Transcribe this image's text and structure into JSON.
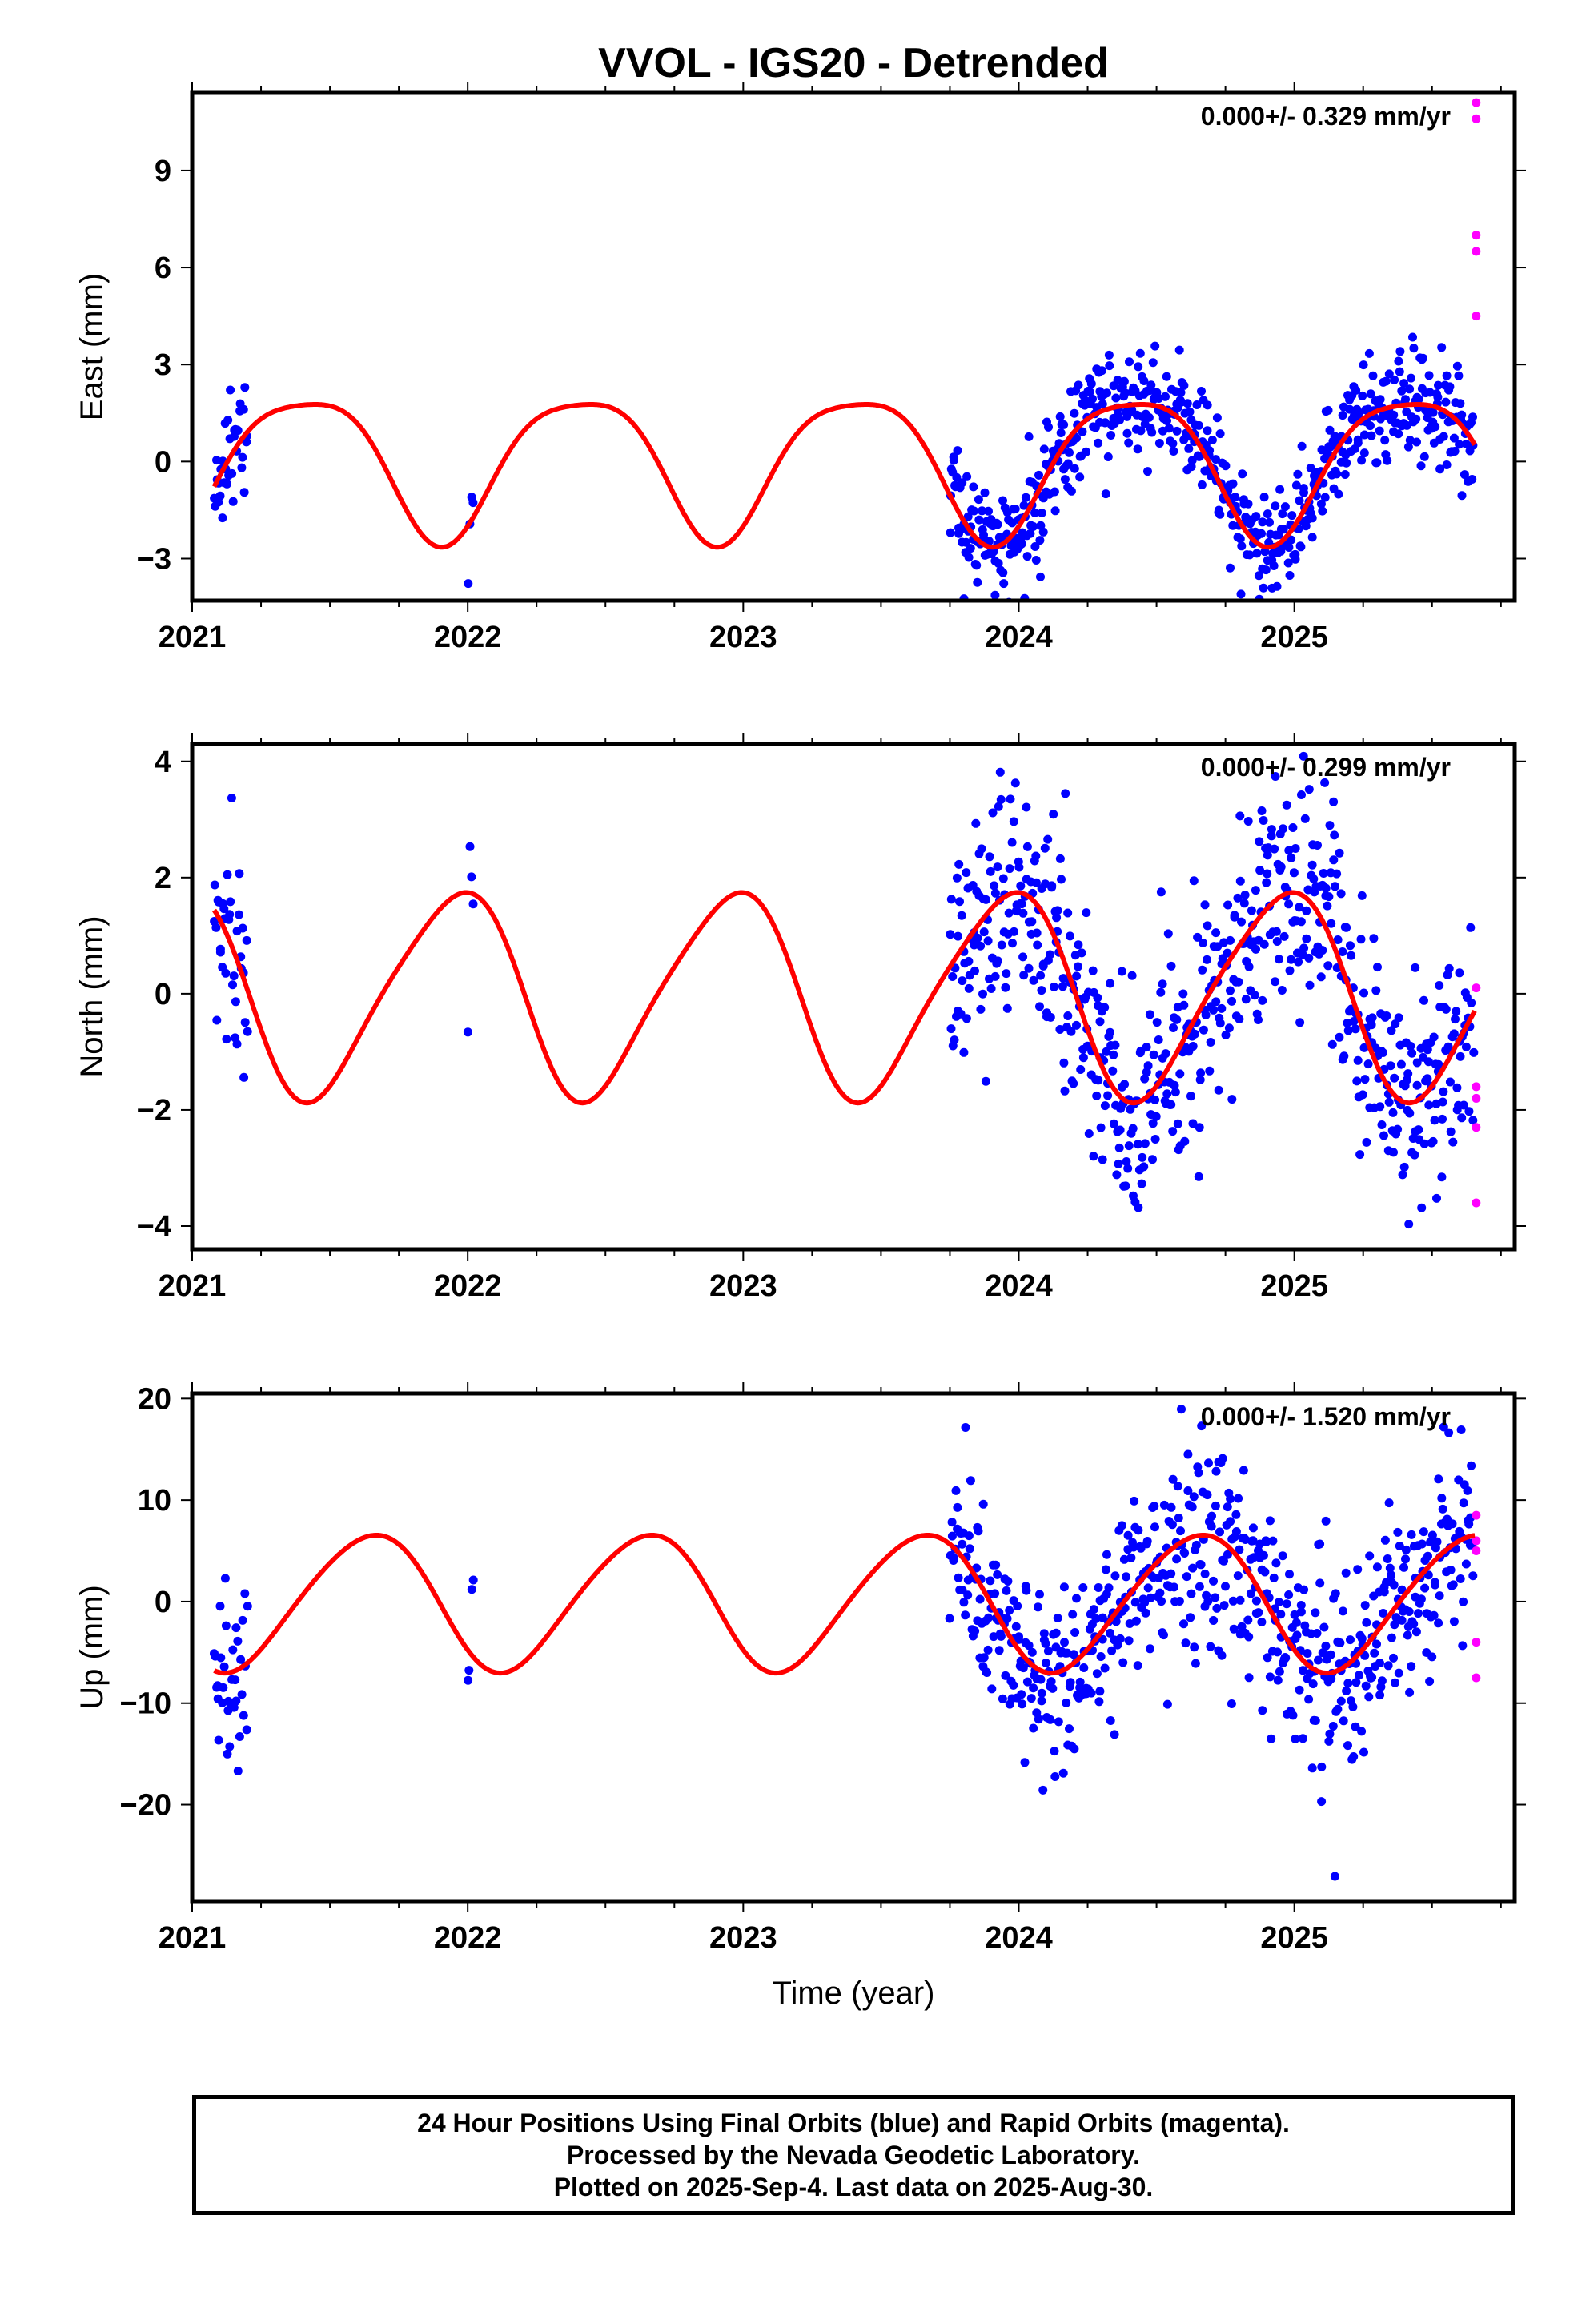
{
  "title": "VVOL - IGS20 - Detrended",
  "colors": {
    "final": "#0000ff",
    "rapid": "#ff00ff",
    "model": "#ff0000",
    "axis": "#000000"
  },
  "footer": {
    "line1": "24 Hour Positions Using Final Orbits (blue) and Rapid Orbits (magenta).",
    "line2": "Processed by the Nevada Geodetic Laboratory.",
    "line3": "Plotted on 2025-Sep-4. Last data on 2025-Aug-30."
  },
  "chart_data": [
    {
      "type": "scatter",
      "name": "east",
      "ylabel": "East (mm)",
      "xlabel": "",
      "xlim": [
        2021.0,
        2025.8
      ],
      "ylim": [
        -4.3,
        11.4
      ],
      "xticks": [
        2021,
        2022,
        2023,
        2024,
        2025
      ],
      "xtick_labels": [
        "2021",
        "2022",
        "2023",
        "2024",
        "2025"
      ],
      "yticks": [
        -3,
        0,
        3,
        6,
        9
      ],
      "ytick_labels": [
        "−3",
        "0",
        "3",
        "6",
        "9"
      ],
      "rate_label": "0.000+/- 0.329 mm/yr",
      "model": {
        "amplitude": 2.2,
        "peak_phase": 0.41,
        "offset": 0.66,
        "semiannual_amp": 0.45,
        "semiannual_phase": 0.15
      },
      "seasonal_start": 2023.8,
      "clusters": [
        {
          "start": 2021.08,
          "end": 2021.2,
          "count": 35
        },
        {
          "start": 2022.0,
          "end": 2022.02,
          "count": 4
        },
        {
          "start": 2023.75,
          "end": 2025.65,
          "count": 620
        }
      ],
      "noise": 0.85,
      "rapid": [
        {
          "x": 2025.66,
          "y": 11.1
        },
        {
          "x": 2025.66,
          "y": 10.6
        },
        {
          "x": 2025.66,
          "y": 7.0
        },
        {
          "x": 2025.66,
          "y": 6.5
        },
        {
          "x": 2025.66,
          "y": 4.5
        }
      ]
    },
    {
      "type": "scatter",
      "name": "north",
      "ylabel": "North (mm)",
      "xlabel": "",
      "xlim": [
        2021.0,
        2025.8
      ],
      "ylim": [
        -4.4,
        4.3
      ],
      "xticks": [
        2021,
        2022,
        2023,
        2024,
        2025
      ],
      "xtick_labels": [
        "2021",
        "2022",
        "2023",
        "2024",
        "2025"
      ],
      "yticks": [
        -4,
        -2,
        0,
        2,
        4
      ],
      "ytick_labels": [
        "−4",
        "−2",
        "0",
        "2",
        "4"
      ],
      "rate_label": "0.000+/- 0.299 mm/yr",
      "model": {
        "amplitude": 1.75,
        "peak_phase": 0.95,
        "offset": 0.1,
        "semiannual_amp": 0.25,
        "semiannual_phase": 0.6
      },
      "seasonal_start": 2023.8,
      "clusters": [
        {
          "start": 2021.08,
          "end": 2021.2,
          "count": 35
        },
        {
          "start": 2022.0,
          "end": 2022.02,
          "count": 4
        },
        {
          "start": 2023.75,
          "end": 2025.65,
          "count": 620
        }
      ],
      "noise": 1.0,
      "rapid": [
        {
          "x": 2025.66,
          "y": 0.1
        },
        {
          "x": 2025.66,
          "y": -1.6
        },
        {
          "x": 2025.66,
          "y": -1.8
        },
        {
          "x": 2025.66,
          "y": -2.3
        },
        {
          "x": 2025.66,
          "y": -3.6
        }
      ]
    },
    {
      "type": "scatter",
      "name": "up",
      "ylabel": "Up (mm)",
      "xlabel": "Time (year)",
      "xlim": [
        2021.0,
        2025.8
      ],
      "ylim": [
        -29.5,
        20.5
      ],
      "xticks": [
        2021,
        2022,
        2023,
        2024,
        2025
      ],
      "xtick_labels": [
        "2021",
        "2022",
        "2023",
        "2024",
        "2025"
      ],
      "yticks": [
        -20,
        -10,
        0,
        10,
        20
      ],
      "ytick_labels": [
        "−20",
        "−10",
        "0",
        "10",
        "20"
      ],
      "rate_label": "0.000+/- 1.520 mm/yr",
      "model": {
        "amplitude": 6.7,
        "peak_phase": 0.64,
        "offset": 0.0,
        "semiannual_amp": 0.6,
        "semiannual_phase": 0.3
      },
      "seasonal_start": 2023.8,
      "clusters": [
        {
          "start": 2021.08,
          "end": 2021.2,
          "count": 35
        },
        {
          "start": 2022.0,
          "end": 2022.02,
          "count": 4
        },
        {
          "start": 2023.75,
          "end": 2025.65,
          "count": 620
        }
      ],
      "noise": 5.0,
      "rapid": [
        {
          "x": 2025.66,
          "y": 8.5
        },
        {
          "x": 2025.66,
          "y": 6.0
        },
        {
          "x": 2025.66,
          "y": 5.0
        },
        {
          "x": 2025.66,
          "y": -4.0
        },
        {
          "x": 2025.66,
          "y": -7.5
        }
      ]
    }
  ]
}
